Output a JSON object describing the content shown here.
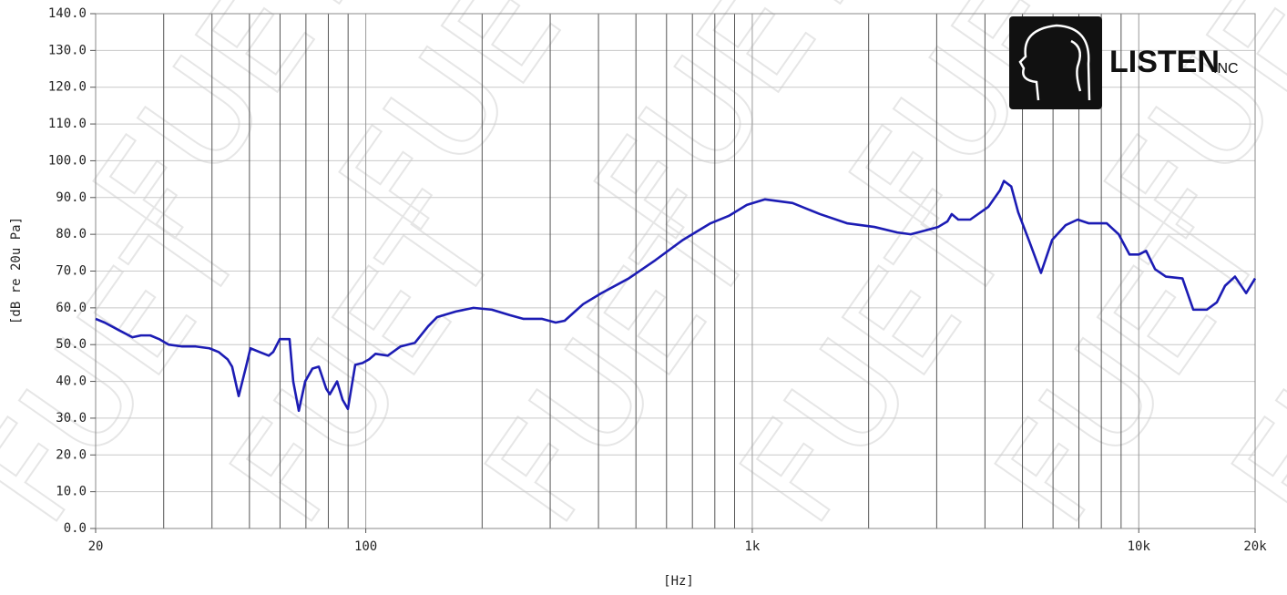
{
  "chart_data": {
    "type": "line",
    "y_label": "[dB re 20u Pa]",
    "x_label": "[Hz]",
    "x_scale": "log",
    "x": [
      20,
      21.1,
      22.9,
      24.9,
      26.2,
      27.7,
      29.2,
      30.9,
      33.5,
      36.3,
      39.4,
      41.6,
      43.9,
      45.1,
      46.9,
      49.0,
      50.3,
      53.1,
      56.1,
      57.6,
      59.9,
      63.5,
      64.9,
      67.1,
      69.7,
      72.8,
      75.6,
      79.0,
      80.7,
      84.3,
      87.1,
      89.9,
      93.9,
      98.1,
      102,
      106,
      114,
      123,
      134,
      145,
      153,
      171,
      190,
      212,
      236,
      256,
      286,
      310,
      327,
      365,
      407,
      479,
      562,
      662,
      780,
      869,
      968,
      1079,
      1271,
      1496,
      1758,
      2070,
      2372,
      2570,
      2792,
      3027,
      3198,
      3282,
      3412,
      3664,
      4084,
      4375,
      4478,
      4678,
      4875,
      5212,
      5585,
      5970,
      6471,
      6950,
      7414,
      8262,
      8872,
      9464,
      10000,
      10447,
      11020,
      11750,
      12972,
      13836,
      15000,
      15920,
      16720,
      17740,
      18960,
      20000
    ],
    "values": [
      57,
      56,
      54,
      52,
      52.5,
      52.5,
      51.5,
      50,
      49.5,
      49.5,
      49,
      48,
      46,
      44,
      36,
      44,
      49,
      48,
      47,
      48,
      51.5,
      51.5,
      40,
      32,
      40,
      43.5,
      44,
      38,
      36.5,
      40,
      35,
      32.5,
      44.5,
      45,
      46,
      47.5,
      47,
      49.5,
      50.5,
      55,
      57.5,
      59,
      60,
      59.5,
      58,
      57,
      57,
      56,
      56.5,
      61,
      64,
      68,
      73,
      78.5,
      83,
      85,
      88,
      89.5,
      88.5,
      85.5,
      83,
      82,
      80.5,
      80,
      81,
      82,
      83.5,
      85.5,
      84,
      84,
      87.5,
      92,
      94.5,
      93,
      86,
      78,
      69.5,
      78.5,
      82.5,
      84,
      83,
      83,
      80,
      74.5,
      74.5,
      75.5,
      70.5,
      68.5,
      68,
      59.5,
      59.5,
      61.5,
      66,
      68.5,
      64,
      68
    ],
    "color": "#1c1cb4",
    "xlim": [
      20,
      20000
    ],
    "xticks": [
      20,
      100,
      {
        "value": 1000,
        "label": "1k"
      },
      {
        "value": 10000,
        "label": "10k"
      },
      {
        "value": 20000,
        "label": "20k"
      }
    ],
    "xgrid": [
      30,
      40,
      50,
      60,
      70,
      80,
      90,
      200,
      300,
      400,
      500,
      600,
      700,
      800,
      900,
      2000,
      3000,
      4000,
      5000,
      6000,
      7000,
      8000,
      9000
    ],
    "ylim": [
      0,
      140
    ],
    "yticks": [
      {
        "value": 0,
        "label": "0.0"
      },
      {
        "value": 10,
        "label": "10.0"
      },
      {
        "value": 20,
        "label": "20.0"
      },
      {
        "value": 30,
        "label": "30.0"
      },
      {
        "value": 40,
        "label": "40.0"
      },
      {
        "value": 50,
        "label": "50.0"
      },
      {
        "value": 60,
        "label": "60.0"
      },
      {
        "value": 70,
        "label": "70.0"
      },
      {
        "value": 80,
        "label": "80.0"
      },
      {
        "value": 90,
        "label": "90.0"
      },
      {
        "value": 100,
        "label": "100.0"
      },
      {
        "value": 110,
        "label": "110.0"
      },
      {
        "value": 120,
        "label": "120.0"
      },
      {
        "value": 130,
        "label": "130.0"
      },
      {
        "value": 140,
        "label": "140.0"
      }
    ],
    "grid": true,
    "logo": {
      "name": "LISTEN",
      "suffix": "INC"
    },
    "watermark": "FUET"
  }
}
